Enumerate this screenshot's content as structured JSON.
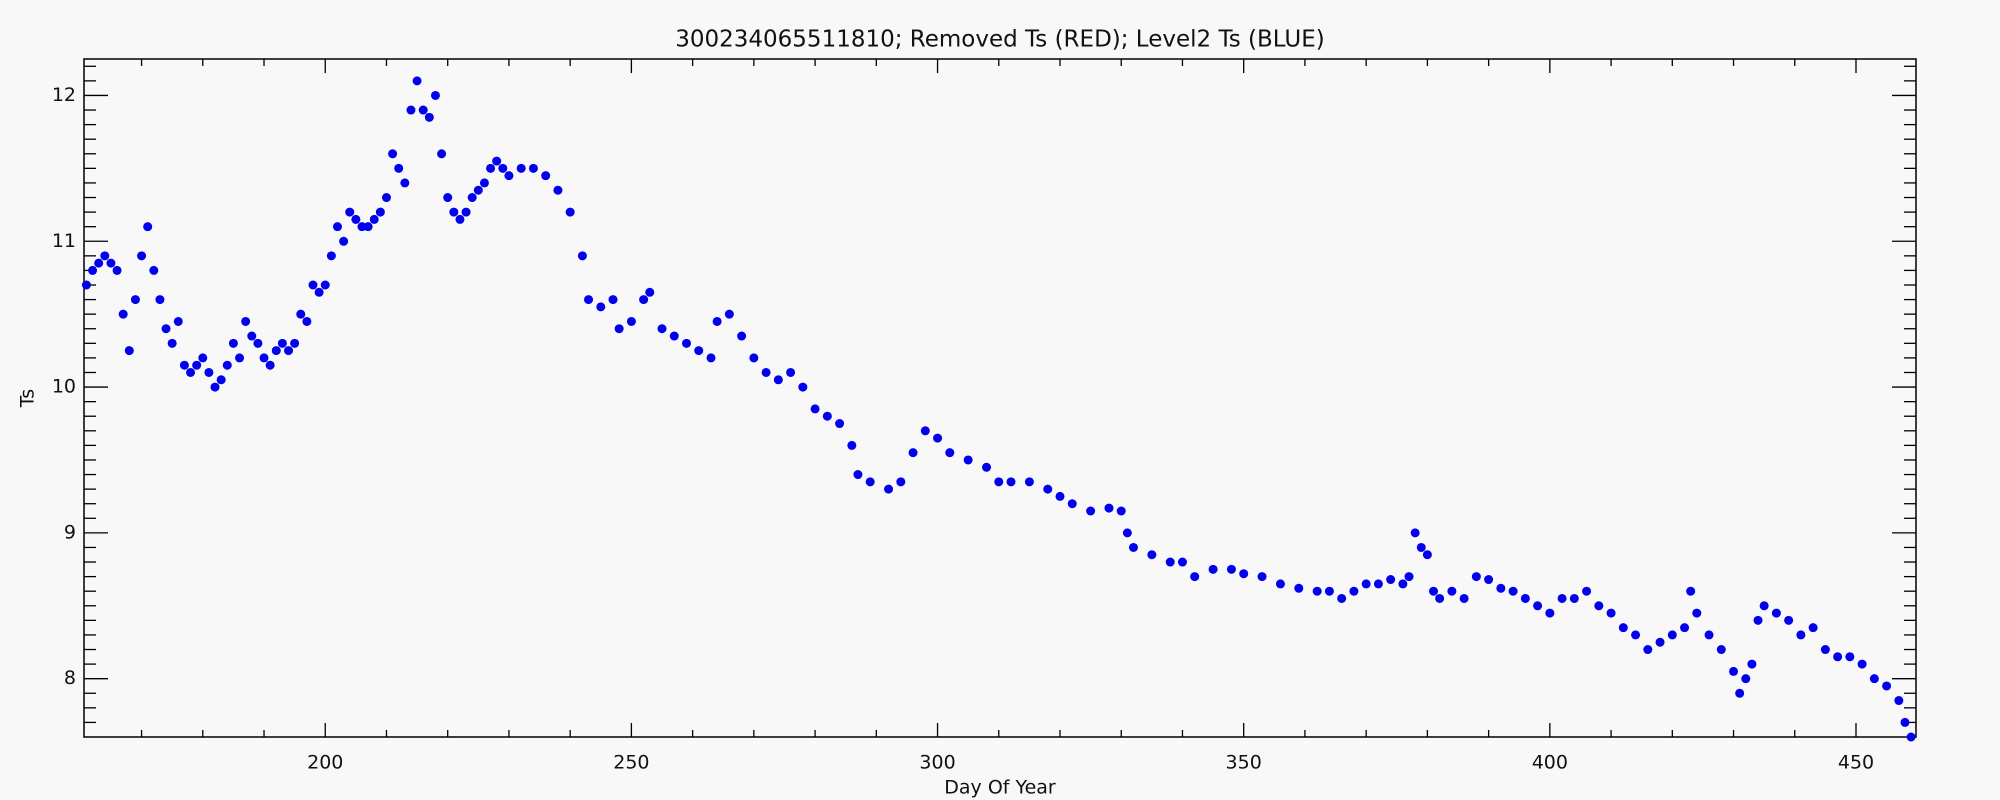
{
  "chart_data": {
    "type": "scatter",
    "title": "300234065511810; Removed Ts (RED); Level2 Ts (BLUE)",
    "x_label": "Day Of Year",
    "y_label": "Ts",
    "color": "#0000ee",
    "x": [
      161,
      162,
      163,
      164,
      165,
      166,
      167,
      168,
      169,
      170,
      171,
      172,
      173,
      174,
      175,
      176,
      177,
      178,
      179,
      180,
      181,
      182,
      183,
      184,
      185,
      186,
      187,
      188,
      189,
      190,
      191,
      192,
      193,
      194,
      195,
      196,
      197,
      198,
      199,
      200,
      201,
      202,
      203,
      204,
      205,
      206,
      207,
      208,
      209,
      210,
      211,
      212,
      213,
      214,
      215,
      216,
      217,
      218,
      219,
      220,
      221,
      222,
      223,
      224,
      225,
      226,
      227,
      228,
      229,
      230,
      232,
      234,
      236,
      238,
      240,
      242,
      243,
      245,
      247,
      248,
      250,
      252,
      253,
      255,
      257,
      259,
      261,
      263,
      264,
      266,
      268,
      270,
      272,
      274,
      276,
      278,
      280,
      282,
      284,
      286,
      287,
      289,
      292,
      294,
      296,
      298,
      300,
      302,
      305,
      308,
      310,
      312,
      315,
      318,
      320,
      322,
      325,
      328,
      330,
      331,
      332,
      335,
      338,
      340,
      342,
      345,
      348,
      350,
      353,
      356,
      359,
      362,
      364,
      366,
      368,
      370,
      372,
      374,
      376,
      377,
      378,
      379,
      380,
      381,
      382,
      384,
      386,
      388,
      390,
      392,
      394,
      396,
      398,
      400,
      402,
      404,
      406,
      408,
      410,
      412,
      414,
      416,
      418,
      420,
      422,
      423,
      424,
      426,
      428,
      430,
      431,
      432,
      433,
      434,
      435,
      437,
      439,
      441,
      443,
      445,
      447,
      449,
      451,
      453,
      455,
      457,
      458,
      459
    ],
    "values": [
      10.7,
      10.8,
      10.85,
      10.9,
      10.85,
      10.8,
      10.5,
      10.25,
      10.6,
      10.9,
      11.1,
      10.8,
      10.6,
      10.4,
      10.3,
      10.45,
      10.15,
      10.1,
      10.15,
      10.2,
      10.1,
      10.0,
      10.05,
      10.15,
      10.3,
      10.2,
      10.45,
      10.35,
      10.3,
      10.2,
      10.15,
      10.25,
      10.3,
      10.25,
      10.3,
      10.5,
      10.45,
      10.7,
      10.65,
      10.7,
      10.9,
      11.1,
      11.0,
      11.2,
      11.15,
      11.1,
      11.1,
      11.15,
      11.2,
      11.3,
      11.6,
      11.5,
      11.4,
      11.9,
      12.1,
      11.9,
      11.85,
      12.0,
      11.6,
      11.3,
      11.2,
      11.15,
      11.2,
      11.3,
      11.35,
      11.4,
      11.5,
      11.55,
      11.5,
      11.45,
      11.5,
      11.5,
      11.45,
      11.35,
      11.2,
      10.9,
      10.6,
      10.55,
      10.6,
      10.4,
      10.45,
      10.6,
      10.65,
      10.4,
      10.35,
      10.3,
      10.25,
      10.2,
      10.45,
      10.5,
      10.35,
      10.2,
      10.1,
      10.05,
      10.1,
      10.0,
      9.85,
      9.8,
      9.75,
      9.6,
      9.4,
      9.35,
      9.3,
      9.35,
      9.55,
      9.7,
      9.65,
      9.55,
      9.5,
      9.45,
      9.35,
      9.35,
      9.35,
      9.3,
      9.25,
      9.2,
      9.15,
      9.17,
      9.15,
      9.0,
      8.9,
      8.85,
      8.8,
      8.8,
      8.7,
      8.75,
      8.75,
      8.72,
      8.7,
      8.65,
      8.62,
      8.6,
      8.6,
      8.55,
      8.6,
      8.65,
      8.65,
      8.68,
      8.65,
      8.7,
      9.0,
      8.9,
      8.85,
      8.6,
      8.55,
      8.6,
      8.55,
      8.7,
      8.68,
      8.62,
      8.6,
      8.55,
      8.5,
      8.45,
      8.55,
      8.55,
      8.6,
      8.5,
      8.45,
      8.35,
      8.3,
      8.2,
      8.25,
      8.3,
      8.35,
      8.6,
      8.45,
      8.3,
      8.2,
      8.05,
      7.9,
      8.0,
      8.1,
      8.4,
      8.5,
      8.45,
      8.4,
      8.3,
      8.35,
      8.2,
      8.15,
      8.15,
      8.1,
      8.0,
      7.95,
      7.85,
      7.7,
      7.6
    ],
    "xlim": [
      160.6,
      459.8
    ],
    "ylim": [
      7.6,
      12.25
    ],
    "xticks": [
      200,
      250,
      300,
      350,
      400,
      450
    ],
    "yticks": [
      8,
      9,
      10,
      11,
      12
    ],
    "xminor": [
      170,
      180,
      190,
      210,
      220,
      230,
      240,
      260,
      270,
      280,
      290,
      310,
      320,
      330,
      340,
      360,
      370,
      380,
      390,
      410,
      420,
      430,
      440
    ],
    "yminor": [
      7.7,
      7.8,
      7.9,
      8.1,
      8.2,
      8.3,
      8.4,
      8.5,
      8.6,
      8.7,
      8.8,
      8.9,
      9.1,
      9.2,
      9.3,
      9.4,
      9.5,
      9.6,
      9.7,
      9.8,
      9.9,
      10.1,
      10.2,
      10.3,
      10.4,
      10.5,
      10.6,
      10.7,
      10.8,
      10.9,
      11.1,
      11.2,
      11.3,
      11.4,
      11.5,
      11.6,
      11.7,
      11.8,
      11.9,
      12.1,
      12.2
    ],
    "grid": false
  }
}
